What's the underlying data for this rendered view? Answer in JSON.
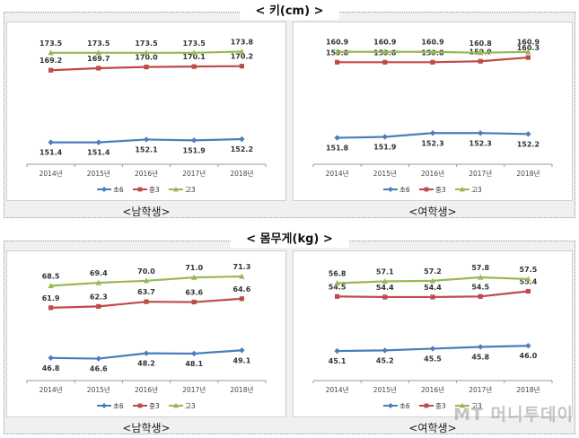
{
  "sections": [
    {
      "title": "< 키(cm) >",
      "captions": [
        "<남학생>",
        "<여학생>"
      ]
    },
    {
      "title": "< 몸무게(kg) >",
      "captions": [
        "<남학생>",
        "<여학생>"
      ]
    }
  ],
  "watermark": "MT 머니투데이",
  "chart_data": [
    {
      "type": "line",
      "categories": [
        "2014년",
        "2015년",
        "2016년",
        "2017년",
        "2018년"
      ],
      "series": [
        {
          "name": "초6",
          "color": "#4a7ebb",
          "marker": "diamond",
          "values": [
            151.4,
            151.4,
            152.1,
            151.9,
            152.2
          ]
        },
        {
          "name": "중3",
          "color": "#be4b48",
          "marker": "square",
          "values": [
            169.2,
            169.7,
            170.0,
            170.1,
            170.2
          ]
        },
        {
          "name": "고3",
          "color": "#98b954",
          "marker": "triangle",
          "values": [
            173.5,
            173.5,
            173.5,
            173.5,
            173.8
          ]
        }
      ],
      "ylim": [
        146,
        177
      ]
    },
    {
      "type": "line",
      "categories": [
        "2014년",
        "2015년",
        "2016년",
        "2017년",
        "2018년"
      ],
      "series": [
        {
          "name": "초6",
          "color": "#4a7ebb",
          "marker": "diamond",
          "values": [
            151.8,
            151.9,
            152.3,
            152.3,
            152.2
          ]
        },
        {
          "name": "중3",
          "color": "#be4b48",
          "marker": "square",
          "values": [
            159.8,
            159.8,
            159.8,
            159.9,
            160.3
          ]
        },
        {
          "name": "고3",
          "color": "#98b954",
          "marker": "triangle",
          "values": [
            160.9,
            160.9,
            160.9,
            160.8,
            160.9
          ]
        }
      ],
      "ylim": [
        149,
        162.3
      ]
    },
    {
      "type": "line",
      "categories": [
        "2014년",
        "2015년",
        "2016년",
        "2017년",
        "2018년"
      ],
      "series": [
        {
          "name": "초6",
          "color": "#4a7ebb",
          "marker": "diamond",
          "values": [
            46.8,
            46.6,
            48.2,
            48.1,
            49.1
          ]
        },
        {
          "name": "중3",
          "color": "#be4b48",
          "marker": "square",
          "values": [
            61.9,
            62.3,
            63.7,
            63.6,
            64.6
          ]
        },
        {
          "name": "고3",
          "color": "#98b954",
          "marker": "triangle",
          "values": [
            68.5,
            69.4,
            70.0,
            71.0,
            71.3
          ]
        }
      ],
      "ylim": [
        40,
        74
      ]
    },
    {
      "type": "line",
      "categories": [
        "2014년",
        "2015년",
        "2016년",
        "2017년",
        "2018년"
      ],
      "series": [
        {
          "name": "초6",
          "color": "#4a7ebb",
          "marker": "diamond",
          "values": [
            45.1,
            45.2,
            45.5,
            45.8,
            46.0
          ]
        },
        {
          "name": "중3",
          "color": "#be4b48",
          "marker": "square",
          "values": [
            54.5,
            54.4,
            54.4,
            54.5,
            55.4
          ]
        },
        {
          "name": "고3",
          "color": "#98b954",
          "marker": "triangle",
          "values": [
            56.8,
            57.1,
            57.2,
            57.8,
            57.5
          ]
        }
      ],
      "ylim": [
        40,
        59.5
      ]
    }
  ]
}
